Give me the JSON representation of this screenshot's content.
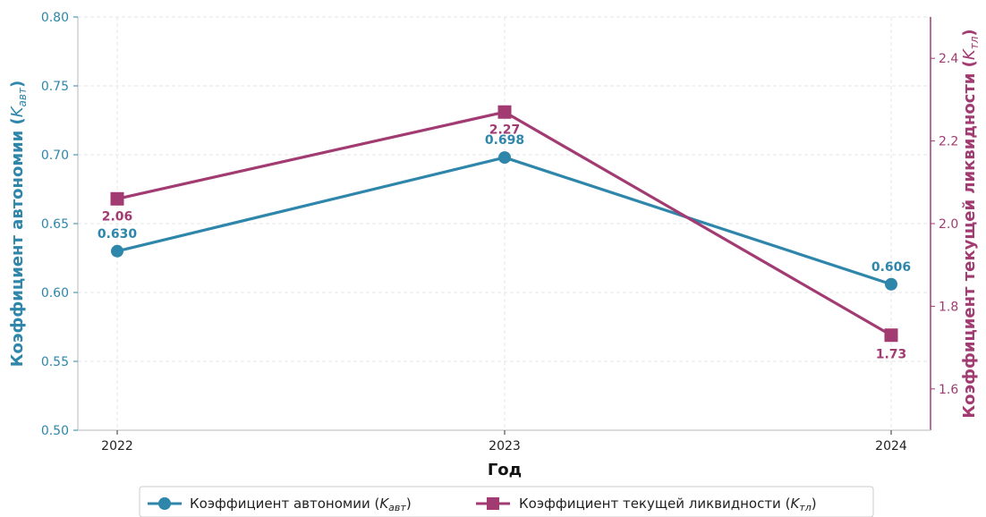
{
  "chart_data": {
    "type": "line",
    "xlabel": "Год",
    "categories": [
      "2022",
      "2023",
      "2024"
    ],
    "grid": true,
    "legend_placement": "bottom-center",
    "colors": {
      "left": "#2e86ab",
      "right": "#a23b72"
    },
    "left_axis": {
      "label_main": "Коэффициент автономии (",
      "label_sym": "K",
      "label_sub": "авт",
      "label_end": ")",
      "ylim": [
        0.5,
        0.8
      ],
      "ticks": [
        0.5,
        0.55,
        0.6,
        0.65,
        0.7,
        0.75,
        0.8
      ],
      "tick_labels": [
        "0.50",
        "0.55",
        "0.60",
        "0.65",
        "0.70",
        "0.75",
        "0.80"
      ]
    },
    "right_axis": {
      "label_main": "Коэффициент текущей ликвидности (",
      "label_sym": "K",
      "label_sub": "тл",
      "label_end": ")",
      "ylim": [
        1.5,
        2.5
      ],
      "ticks": [
        1.6,
        1.8,
        2.0,
        2.2,
        2.4
      ],
      "tick_labels": [
        "1.6",
        "1.8",
        "2.0",
        "2.2",
        "2.4"
      ]
    },
    "series": [
      {
        "name": "Коэффициент автономии (Kавт)",
        "legend_main": "Коэффициент автономии (",
        "legend_sym": "K",
        "legend_sub": "авт",
        "legend_end": ")",
        "axis": "left",
        "color": "#2e86ab",
        "marker": "circle",
        "values": [
          0.63,
          0.698,
          0.606
        ],
        "labels": [
          "0.630",
          "0.698",
          "0.606"
        ]
      },
      {
        "name": "Коэффициент текущей ликвидности (Kтл)",
        "legend_main": "Коэффициент текущей ликвидности (",
        "legend_sym": "K",
        "legend_sub": "тл",
        "legend_end": ")",
        "axis": "right",
        "color": "#a23b72",
        "marker": "square",
        "values": [
          2.06,
          2.27,
          1.73
        ],
        "labels": [
          "2.06",
          "2.27",
          "1.73"
        ]
      }
    ]
  }
}
